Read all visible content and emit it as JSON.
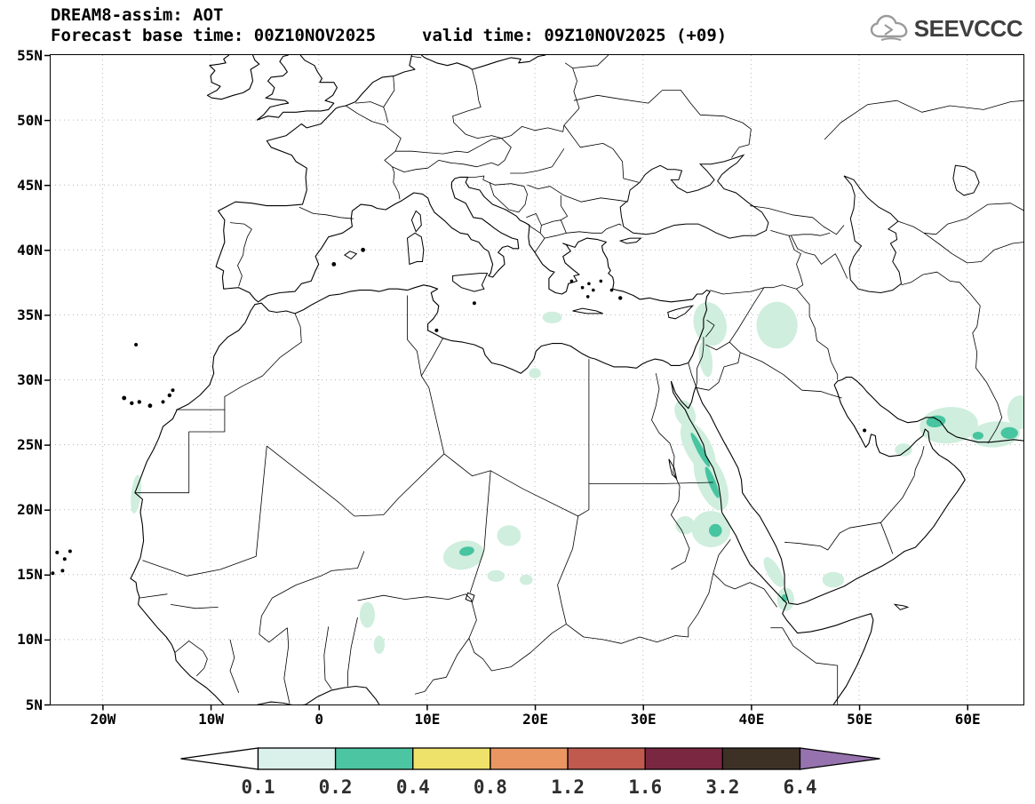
{
  "header": {
    "title": "DREAM8-assim: AOT",
    "base_time": "Forecast base time: 00Z10NOV2025",
    "valid_time": "valid time: 09Z10NOV2025 (+09)"
  },
  "logo": {
    "text": "SEEVCCC",
    "icon": "cloud-icon",
    "color": "#3f3f3f"
  },
  "map": {
    "lat_tick_labels": [
      "55N",
      "50N",
      "45N",
      "40N",
      "35N",
      "30N",
      "25N",
      "20N",
      "15N",
      "10N",
      "5N"
    ],
    "lat_tick_values": [
      55,
      50,
      45,
      40,
      35,
      30,
      25,
      20,
      15,
      10,
      5
    ],
    "lon_tick_labels": [
      "20W",
      "10W",
      "0",
      "10E",
      "20E",
      "30E",
      "40E",
      "50E",
      "60E"
    ],
    "lon_tick_values": [
      -20,
      -10,
      0,
      10,
      20,
      30,
      40,
      50,
      60
    ],
    "extent": {
      "lon_min": -24.8,
      "lon_max": 65.2,
      "lat_min": 5,
      "lat_max": 55
    },
    "grid_color": "#b2b8b2",
    "coast_color": "#000000"
  },
  "chart_data": {
    "type": "map",
    "title": "DREAM8-assim: AOT",
    "variable": "AOT",
    "model": "DREAM8-assim",
    "base_time": "00Z10NOV2025",
    "valid_time": "09Z10NOV2025",
    "forecast_hour": "+09",
    "levels": [
      0.1,
      0.2,
      0.4,
      0.8,
      1.2,
      1.6,
      3.2,
      6.4
    ],
    "colorbar": {
      "labels": [
        "0.1",
        "0.2",
        "0.4",
        "0.8",
        "1.2",
        "1.6",
        "3.2",
        "6.4"
      ],
      "segment_colors": [
        "#d9f1ea",
        "#4cc5a2",
        "#efe26a",
        "#ea9663",
        "#c05a4e",
        "#7a2742",
        "#3d3126"
      ],
      "under_color": "#ffffff",
      "over_color": "#9672ae",
      "label_color": "#2e2e2e"
    },
    "overlay_levels": {
      "l1": {
        "range": "0.1-0.2",
        "color": "#cfeede"
      },
      "l2": {
        "range": "0.2-0.4",
        "color": "#47c4a0"
      }
    },
    "overlays": [
      {
        "lon": 36.2,
        "lat": 34.3,
        "rx": 1.5,
        "ry": 1.7,
        "rot": -15,
        "level": "l1"
      },
      {
        "lon": 35.8,
        "lat": 31.6,
        "rx": 0.6,
        "ry": 1.4,
        "rot": -8,
        "level": "l1"
      },
      {
        "lon": 42.4,
        "lat": 34.2,
        "rx": 1.9,
        "ry": 1.8,
        "rot": 0,
        "level": "l1"
      },
      {
        "lon": 21.6,
        "lat": 34.8,
        "rx": 0.9,
        "ry": 0.45,
        "rot": 0,
        "level": "l1"
      },
      {
        "lon": 20.0,
        "lat": 30.5,
        "rx": 0.55,
        "ry": 0.4,
        "rot": 0,
        "level": "l1"
      },
      {
        "lon": 33.9,
        "lat": 27.4,
        "rx": 0.9,
        "ry": 1.1,
        "rot": -25,
        "level": "l1"
      },
      {
        "lon": 35.1,
        "lat": 24.8,
        "rx": 1.2,
        "ry": 2.2,
        "rot": -28,
        "level": "l1"
      },
      {
        "lon": 36.3,
        "lat": 22.2,
        "rx": 1.3,
        "ry": 2.4,
        "rot": -22,
        "level": "l1"
      },
      {
        "lon": 36.3,
        "lat": 18.5,
        "rx": 1.8,
        "ry": 1.4,
        "rot": 0,
        "level": "l1"
      },
      {
        "lon": 33.9,
        "lat": 18.8,
        "rx": 0.9,
        "ry": 0.7,
        "rot": 0,
        "level": "l1"
      },
      {
        "lon": 13.4,
        "lat": 16.5,
        "rx": 1.9,
        "ry": 1.1,
        "rot": -12,
        "level": "l1"
      },
      {
        "lon": 17.6,
        "lat": 18.0,
        "rx": 1.1,
        "ry": 0.8,
        "rot": 0,
        "level": "l1"
      },
      {
        "lon": 16.4,
        "lat": 14.9,
        "rx": 0.8,
        "ry": 0.45,
        "rot": 0,
        "level": "l1"
      },
      {
        "lon": 19.2,
        "lat": 14.6,
        "rx": 0.6,
        "ry": 0.4,
        "rot": 0,
        "level": "l1"
      },
      {
        "lon": 4.5,
        "lat": 11.9,
        "rx": 0.7,
        "ry": 1.0,
        "rot": 0,
        "level": "l1"
      },
      {
        "lon": 5.6,
        "lat": 9.6,
        "rx": 0.5,
        "ry": 0.7,
        "rot": 0,
        "level": "l1"
      },
      {
        "lon": -16.9,
        "lat": 21.2,
        "rx": 0.45,
        "ry": 1.5,
        "rot": 6,
        "level": "l1"
      },
      {
        "lon": 42.1,
        "lat": 15.2,
        "rx": 0.6,
        "ry": 1.3,
        "rot": -30,
        "level": "l1"
      },
      {
        "lon": 43.2,
        "lat": 13.1,
        "rx": 0.8,
        "ry": 0.9,
        "rot": 0,
        "level": "l1"
      },
      {
        "lon": 47.6,
        "lat": 14.6,
        "rx": 1.0,
        "ry": 0.6,
        "rot": 0,
        "level": "l1"
      },
      {
        "lon": 58.3,
        "lat": 26.5,
        "rx": 2.7,
        "ry": 1.4,
        "rot": -5,
        "level": "l1"
      },
      {
        "lon": 62.6,
        "lat": 25.8,
        "rx": 2.3,
        "ry": 1.0,
        "rot": -5,
        "level": "l1"
      },
      {
        "lon": 64.9,
        "lat": 27.5,
        "rx": 1.2,
        "ry": 1.3,
        "rot": 0,
        "level": "l1"
      },
      {
        "lon": 54.1,
        "lat": 24.6,
        "rx": 0.8,
        "ry": 0.5,
        "rot": 0,
        "level": "l1"
      },
      {
        "lon": 35.3,
        "lat": 24.6,
        "rx": 0.3,
        "ry": 1.5,
        "rot": -28,
        "level": "l2"
      },
      {
        "lon": 36.4,
        "lat": 22.1,
        "rx": 0.32,
        "ry": 1.3,
        "rot": -22,
        "level": "l2"
      },
      {
        "lon": 36.7,
        "lat": 18.4,
        "rx": 0.6,
        "ry": 0.5,
        "rot": 0,
        "level": "l2"
      },
      {
        "lon": 13.7,
        "lat": 16.8,
        "rx": 0.7,
        "ry": 0.35,
        "rot": -12,
        "level": "l2"
      },
      {
        "lon": 43.1,
        "lat": 13.2,
        "rx": 0.28,
        "ry": 0.3,
        "rot": 0,
        "level": "l2"
      },
      {
        "lon": 57.1,
        "lat": 26.8,
        "rx": 0.9,
        "ry": 0.45,
        "rot": -8,
        "level": "l2"
      },
      {
        "lon": 61.0,
        "lat": 25.7,
        "rx": 0.5,
        "ry": 0.3,
        "rot": 0,
        "level": "l2"
      },
      {
        "lon": 63.9,
        "lat": 25.9,
        "rx": 0.8,
        "ry": 0.45,
        "rot": 0,
        "level": "l2"
      }
    ]
  }
}
